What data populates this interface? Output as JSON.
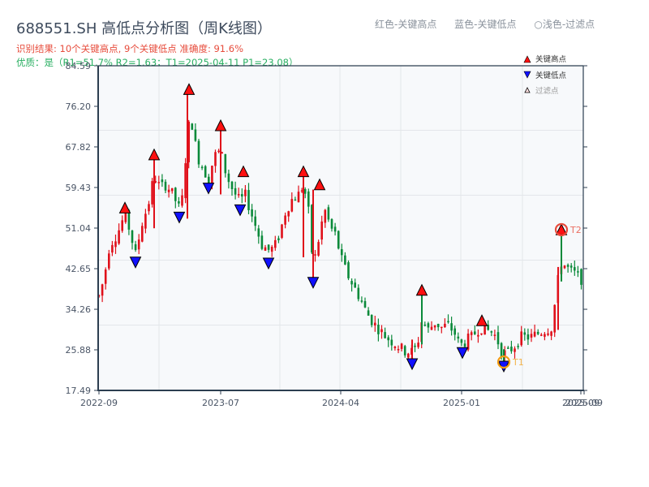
{
  "header": {
    "title": "688551.SH 高低点分析图（周K线图）",
    "result_line": "识别结果: 10个关键高点, 9个关键低点   准确度: 91.6%",
    "quality_line": "优质：是（R1=51.7%  R2=1.63；T1=2025-04-11 P1=23.08）",
    "legend_text": [
      "红色-关键高点",
      "蓝色-关键低点",
      "○浅色-过滤点"
    ]
  },
  "colors": {
    "up": "#e0101a",
    "down": "#0a8a3a",
    "high_marker": "#ff1010",
    "low_marker": "#1010ff",
    "t_highlight": "#e74c3c",
    "t1_ring": "#f39c12",
    "grid": "#e3e6ea",
    "plot_bg": "#f7f9fb",
    "axis": "#2c3e50"
  },
  "legend": {
    "items": [
      {
        "symbol": "triangle-up-red",
        "label": "关键高点"
      },
      {
        "symbol": "triangle-down-blue",
        "label": "关键低点"
      },
      {
        "symbol": "triangle-up-hollow",
        "label": "过滤点"
      }
    ]
  },
  "chart_data": {
    "type": "candlestick",
    "title": "688551.SH 高低点分析图（周K线图）",
    "xlabel": "",
    "ylabel": "",
    "ylim": [
      17.49,
      84.59
    ],
    "yticks": [
      17.49,
      25.88,
      34.26,
      42.65,
      51.04,
      59.43,
      67.82,
      76.2,
      84.59
    ],
    "xticks": [
      "2022-09",
      "2023-07",
      "2024-04",
      "2025-01",
      "2025-09"
    ],
    "x_range": [
      "2022-09",
      "2025-09"
    ],
    "grid": true,
    "legend_position": "upper right",
    "key_highs": [
      55.0,
      66.0,
      79.5,
      72.0,
      62.5,
      62.5,
      59.8,
      38.0,
      31.7,
      50.5
    ],
    "key_lows": [
      44.2,
      53.5,
      59.5,
      55.0,
      44.0,
      40.0,
      23.2,
      25.5,
      22.7
    ],
    "key_high_count": 10,
    "key_low_count": 9,
    "accuracy": "91.6%",
    "annotations": [
      {
        "label": "T1",
        "date": "2025-04-11",
        "price": 23.08,
        "type": "low"
      },
      {
        "label": "T2",
        "price": 50.5,
        "type": "high"
      }
    ],
    "metrics": {
      "R1": "51.7%",
      "R2": 1.63,
      "T1": "2025-04-11",
      "P1": 23.08
    }
  }
}
